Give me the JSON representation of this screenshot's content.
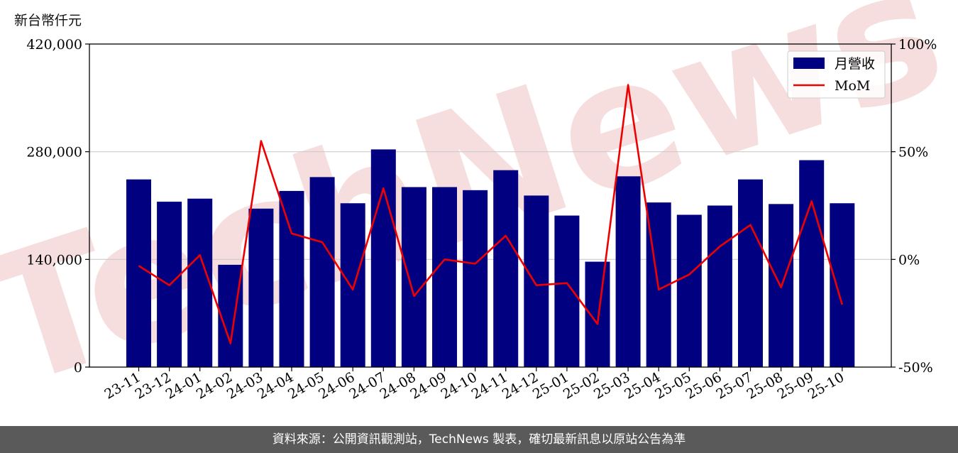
{
  "chart_data": {
    "type": "bar",
    "ylabel": "新台幣仟元",
    "categories": [
      "23-11",
      "23-12",
      "24-01",
      "24-02",
      "24-03",
      "24-04",
      "24-05",
      "24-06",
      "24-07",
      "24-08",
      "24-09",
      "24-10",
      "24-11",
      "24-12",
      "25-01",
      "25-02",
      "25-03",
      "25-04",
      "25-05",
      "25-06",
      "25-07",
      "25-08",
      "25-09",
      "25-10"
    ],
    "ylim": [
      0,
      420000
    ],
    "yticks": [
      "0",
      "140,000",
      "280,000",
      "420,000"
    ],
    "y2lim": [
      -50,
      100
    ],
    "y2ticks": [
      "-50%",
      "0%",
      "50%",
      "100%"
    ],
    "grid": "horizontal",
    "legend_position": "top-right",
    "watermark": "TechNews",
    "colors": {
      "bar": "#000080",
      "line": "#ee0000",
      "grid": "#cccccc",
      "watermark": "#f6dede"
    },
    "series": [
      {
        "name": "月營收",
        "type": "bar",
        "axis": "left",
        "values": [
          244000,
          215000,
          219000,
          133000,
          206000,
          229000,
          247000,
          213000,
          283000,
          234000,
          234000,
          230000,
          256000,
          223000,
          197000,
          137000,
          248000,
          214000,
          198000,
          210000,
          244000,
          212000,
          269000,
          213000
        ]
      },
      {
        "name": "MoM",
        "type": "line",
        "axis": "right",
        "values": [
          -3,
          -12,
          2,
          -39,
          55,
          12,
          8,
          -14,
          33,
          -17,
          0,
          -2,
          11,
          -12,
          -11,
          -30,
          81,
          -14,
          -7,
          6,
          16,
          -13,
          27,
          -21
        ]
      }
    ]
  },
  "footer": {
    "source_text": "資料來源：公開資訊觀測站，TechNews 製表，確切最新訊息以原站公告為準"
  }
}
